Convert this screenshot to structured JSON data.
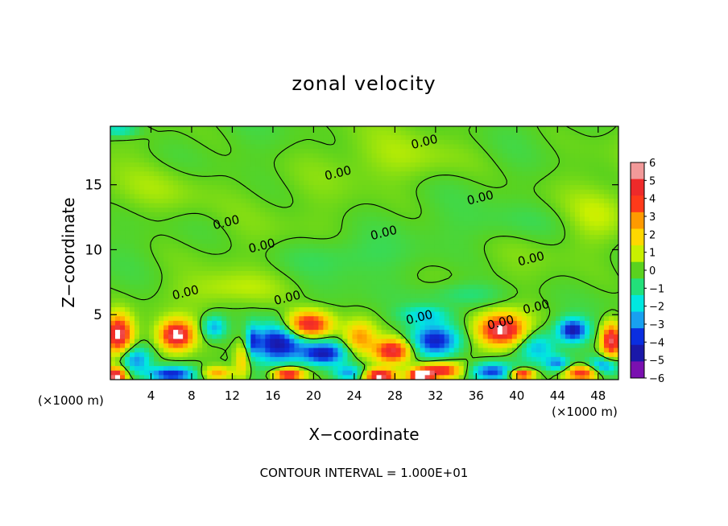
{
  "chart_data": {
    "type": "heatmap",
    "title": "zonal velocity",
    "xlabel": "X−coordinate",
    "ylabel": "Z−coordinate",
    "x_unit_left": "(×1000 m)",
    "x_unit_right": "(×1000 m)",
    "footer": "CONTOUR INTERVAL = 1.000E+01",
    "xlim": [
      0,
      50
    ],
    "ylim": [
      0,
      19.5
    ],
    "x_ticks": [
      "4",
      "8",
      "12",
      "16",
      "20",
      "24",
      "28",
      "32",
      "36",
      "40",
      "44",
      "48"
    ],
    "x_tick_values": [
      4,
      8,
      12,
      16,
      20,
      24,
      28,
      32,
      36,
      40,
      44,
      48
    ],
    "y_ticks": [
      "5",
      "10",
      "15"
    ],
    "y_tick_values": [
      5,
      10,
      15
    ],
    "colorbar": {
      "labels": [
        "6",
        "5",
        "4",
        "3",
        "2",
        "1",
        "0",
        "−1",
        "−2",
        "−3",
        "−4",
        "−5",
        "−6"
      ],
      "values": [
        6,
        5,
        4,
        3,
        2,
        1,
        0,
        -1,
        -2,
        -3,
        -4,
        -5,
        -6
      ],
      "colors": [
        "#f29999",
        "#ee2a2a",
        "#ff3a1a",
        "#ff9a00",
        "#ffd800",
        "#c8f000",
        "#5ad21e",
        "#22e07a",
        "#00e8e0",
        "#18a0f0",
        "#0a2ee0",
        "#1a18a8",
        "#7a10b0"
      ]
    },
    "contour_label": "0.00",
    "contour_labels": [
      {
        "text": "0.00",
        "x": 31.0,
        "y": 18.0
      },
      {
        "text": "0.00",
        "x": 22.5,
        "y": 15.6
      },
      {
        "text": "0.00",
        "x": 11.5,
        "y": 11.8
      },
      {
        "text": "0.00",
        "x": 36.5,
        "y": 13.7
      },
      {
        "text": "0.00",
        "x": 27.0,
        "y": 11.0
      },
      {
        "text": "0.00",
        "x": 15.0,
        "y": 10.0
      },
      {
        "text": "0.00",
        "x": 41.5,
        "y": 9.0
      },
      {
        "text": "0.00",
        "x": 7.5,
        "y": 6.4
      },
      {
        "text": "0.00",
        "x": 17.5,
        "y": 6.0
      },
      {
        "text": "0.00",
        "x": 42.0,
        "y": 5.3
      },
      {
        "text": "0.00",
        "x": 30.5,
        "y": 4.5
      },
      {
        "text": "0.00",
        "x": 38.5,
        "y": 4.1
      }
    ],
    "features": [
      {
        "x": 0.8,
        "y": 3.5,
        "v": 5.8,
        "rx": 1.3,
        "ry": 1.4
      },
      {
        "x": 6.5,
        "y": 3.4,
        "v": 5.8,
        "rx": 1.6,
        "ry": 1.1
      },
      {
        "x": 0.5,
        "y": 0.3,
        "v": 6.0,
        "rx": 1.0,
        "ry": 0.6
      },
      {
        "x": 2.5,
        "y": 1.5,
        "v": -3.5,
        "rx": 1.5,
        "ry": 1.0
      },
      {
        "x": 6.0,
        "y": 0.4,
        "v": -4.5,
        "rx": 2.5,
        "ry": 0.6
      },
      {
        "x": 10.5,
        "y": 0.5,
        "v": 3.0,
        "rx": 1.5,
        "ry": 0.5
      },
      {
        "x": 10.2,
        "y": 4.0,
        "v": -3.0,
        "rx": 1.2,
        "ry": 0.9
      },
      {
        "x": 13.0,
        "y": 1.5,
        "v": 2.5,
        "rx": 0.8,
        "ry": 1.5
      },
      {
        "x": 14.0,
        "y": 3.0,
        "v": -2.5,
        "rx": 0.6,
        "ry": 1.2
      },
      {
        "x": 16.5,
        "y": 2.8,
        "v": -5.0,
        "rx": 2.5,
        "ry": 1.5
      },
      {
        "x": 19.5,
        "y": 4.2,
        "v": 5.7,
        "rx": 2.2,
        "ry": 1.0
      },
      {
        "x": 21.0,
        "y": 2.0,
        "v": -4.5,
        "rx": 2.2,
        "ry": 0.9
      },
      {
        "x": 17.5,
        "y": 0.4,
        "v": 5.5,
        "rx": 1.5,
        "ry": 0.5
      },
      {
        "x": 23.5,
        "y": 0.5,
        "v": -3.0,
        "rx": 1.5,
        "ry": 0.6
      },
      {
        "x": 24.5,
        "y": 3.2,
        "v": 3.0,
        "rx": 1.5,
        "ry": 1.2
      },
      {
        "x": 27.8,
        "y": 2.2,
        "v": 5.2,
        "rx": 1.8,
        "ry": 0.9
      },
      {
        "x": 26.5,
        "y": 0.3,
        "v": 5.8,
        "rx": 1.5,
        "ry": 0.5
      },
      {
        "x": 32.0,
        "y": 3.0,
        "v": -4.8,
        "rx": 2.5,
        "ry": 1.3
      },
      {
        "x": 32.5,
        "y": 0.7,
        "v": 5.0,
        "rx": 2.0,
        "ry": 0.6
      },
      {
        "x": 31.0,
        "y": 5.0,
        "v": -2.0,
        "rx": 2.5,
        "ry": 0.7
      },
      {
        "x": 30.5,
        "y": 0.3,
        "v": 5.8,
        "rx": 1.2,
        "ry": 0.5
      },
      {
        "x": 38.5,
        "y": 3.8,
        "v": 5.9,
        "rx": 2.3,
        "ry": 1.2
      },
      {
        "x": 37.5,
        "y": 0.6,
        "v": -4.0,
        "rx": 2.2,
        "ry": 0.7
      },
      {
        "x": 40.5,
        "y": 0.4,
        "v": 5.5,
        "rx": 1.2,
        "ry": 0.4
      },
      {
        "x": 42.0,
        "y": 2.5,
        "v": -2.5,
        "rx": 1.8,
        "ry": 1.2
      },
      {
        "x": 45.5,
        "y": 3.8,
        "v": -4.8,
        "rx": 1.5,
        "ry": 0.9
      },
      {
        "x": 46.5,
        "y": 0.5,
        "v": 5.0,
        "rx": 1.8,
        "ry": 0.6
      },
      {
        "x": 49.3,
        "y": 3.0,
        "v": 5.5,
        "rx": 1.0,
        "ry": 1.3
      },
      {
        "x": 48.5,
        "y": 1.0,
        "v": -3.5,
        "rx": 1.5,
        "ry": 0.7
      },
      {
        "x": 44.0,
        "y": 1.2,
        "v": -3.0,
        "rx": 1.2,
        "ry": 0.6
      },
      {
        "x": 5.0,
        "y": 14.5,
        "v": 0.7,
        "rx": 6.0,
        "ry": 2.0
      },
      {
        "x": 30.0,
        "y": 17.0,
        "v": 0.6,
        "rx": 6.0,
        "ry": 1.8
      },
      {
        "x": 22.0,
        "y": 9.5,
        "v": -0.6,
        "rx": 6.0,
        "ry": 1.5
      },
      {
        "x": 40.0,
        "y": 12.0,
        "v": -0.5,
        "rx": 6.0,
        "ry": 1.5
      },
      {
        "x": 12.0,
        "y": 7.0,
        "v": 0.7,
        "rx": 5.0,
        "ry": 1.2
      },
      {
        "x": 0.8,
        "y": 19.2,
        "v": -2.0,
        "rx": 2.0,
        "ry": 0.5
      },
      {
        "x": 48.0,
        "y": 12.5,
        "v": 0.8,
        "rx": 3.0,
        "ry": 2.0
      },
      {
        "x": 35.0,
        "y": 6.5,
        "v": -1.2,
        "rx": 4.0,
        "ry": 1.0
      }
    ]
  }
}
